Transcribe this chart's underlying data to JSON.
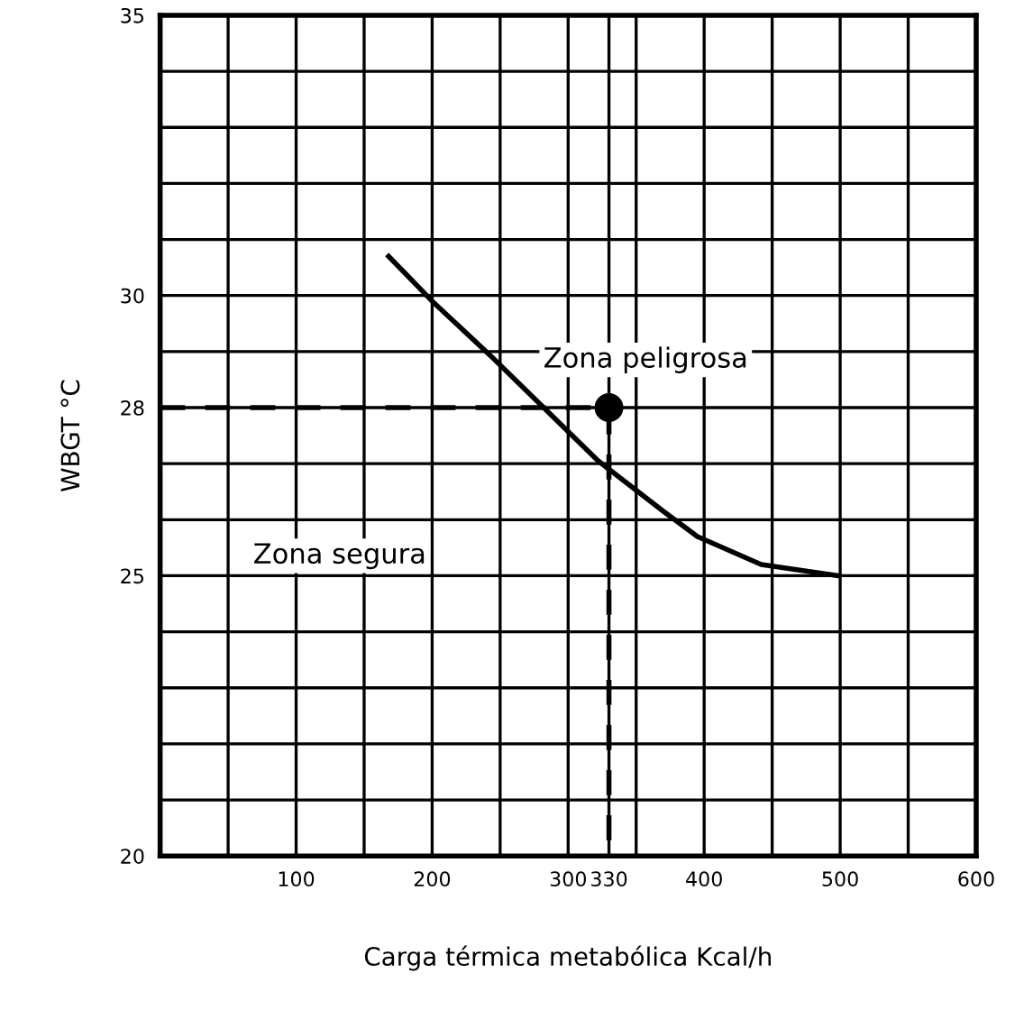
{
  "chart_data": {
    "type": "line",
    "xlabel": "Carga térmica metabólica Kcal/h",
    "ylabel": "WBGT °C",
    "xlim": [
      0,
      600
    ],
    "ylim": [
      20,
      35
    ],
    "xticks": [
      {
        "value": 50,
        "label": null
      },
      100,
      {
        "value": 150,
        "label": null
      },
      200,
      {
        "value": 250,
        "label": null
      },
      300,
      330,
      {
        "value": 350,
        "label": null
      },
      400,
      {
        "value": 450,
        "label": null
      },
      500,
      {
        "value": 550,
        "label": null
      },
      600
    ],
    "yticks": [
      20,
      {
        "value": 21,
        "label": null
      },
      {
        "value": 22,
        "label": null
      },
      {
        "value": 23,
        "label": null
      },
      {
        "value": 24,
        "label": null
      },
      25,
      {
        "value": 26,
        "label": null
      },
      {
        "value": 27,
        "label": null
      },
      28,
      {
        "value": 29,
        "label": null
      },
      30,
      {
        "value": 31,
        "label": null
      },
      {
        "value": 32,
        "label": null
      },
      {
        "value": 33,
        "label": null
      },
      {
        "value": 34,
        "label": null
      },
      35
    ],
    "grid": true,
    "series": [
      {
        "color": "#000000",
        "line_style": "solid",
        "x": [
          168,
          200,
          244,
          282,
          322,
          370,
          395,
          442,
          498
        ],
        "values": [
          30.7,
          29.9,
          28.9,
          28.0,
          27.05,
          26.15,
          25.7,
          25.2,
          25.0
        ]
      },
      {
        "color": "#000000",
        "line_style": "dashed",
        "x": [
          0,
          330,
          330
        ],
        "values": [
          28,
          28,
          20
        ]
      },
      {
        "type": "scatter",
        "color": "#000000",
        "marker": "circle",
        "x": [
          330
        ],
        "values": [
          28
        ]
      }
    ],
    "annotations": [
      "Zona peligrosa",
      "Zona segura"
    ]
  }
}
